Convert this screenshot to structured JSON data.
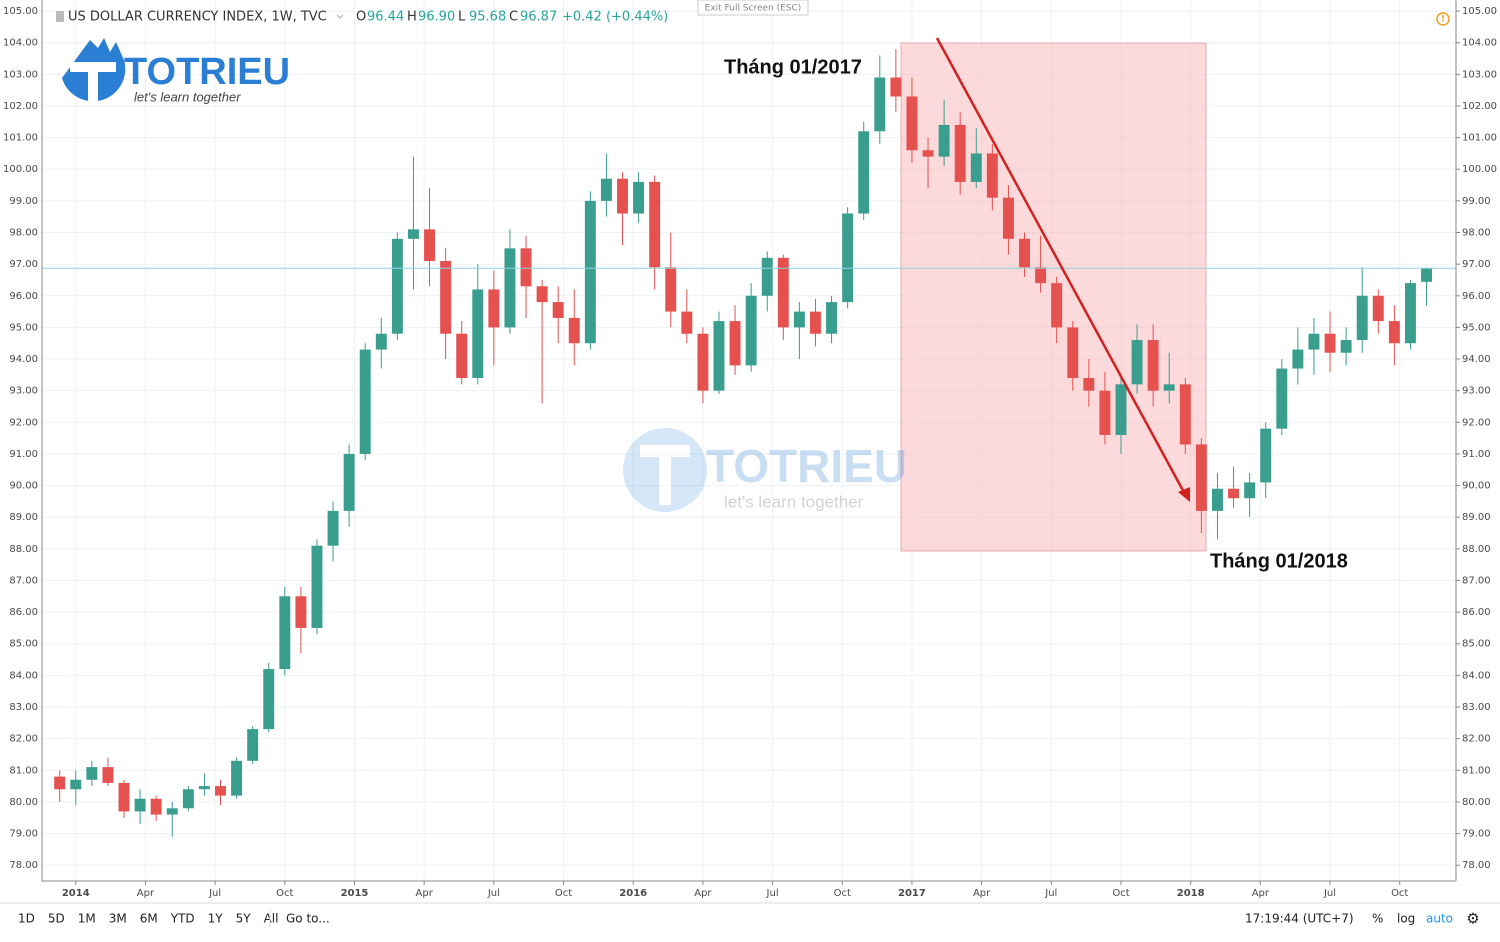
{
  "header": {
    "title": "US DOLLAR CURRENCY INDEX, 1W, TVC",
    "ohlc": [
      {
        "key": "O",
        "value": "96.44"
      },
      {
        "key": "H",
        "value": "96.90"
      },
      {
        "key": "L",
        "value": "95.68"
      },
      {
        "key": "C",
        "value": "96.87"
      }
    ],
    "change": "+0.42 (+0.44%)",
    "exit": "Exit Full Screen (ESC)"
  },
  "logo": {
    "name": "TOTRIEU",
    "tagline": "let's learn together"
  },
  "toolbar": {
    "ranges": [
      "1D",
      "5D",
      "1M",
      "3M",
      "6M",
      "YTD",
      "1Y",
      "5Y",
      "All"
    ],
    "goto": "Go to...",
    "time": "17:19:44 (UTC+7)",
    "percent": "%",
    "log": "log",
    "auto": "auto"
  },
  "chart_data": {
    "type": "candlestick",
    "title": "US DOLLAR CURRENCY INDEX, 1W, TVC",
    "x": [
      -3,
      0,
      3,
      6,
      9,
      12,
      15,
      18,
      21,
      24,
      27,
      30,
      33,
      36,
      39,
      42,
      45,
      48,
      51,
      54,
      57,
      60,
      63,
      66,
      69,
      72,
      75,
      78,
      81,
      84,
      87,
      90,
      93,
      96,
      99,
      102,
      105,
      108,
      111,
      114,
      117,
      120,
      123,
      126,
      129,
      132,
      135,
      138,
      141,
      144,
      147,
      150,
      153,
      156,
      159,
      162,
      165,
      168,
      171,
      174,
      177,
      180,
      183,
      186,
      189,
      192,
      195,
      198,
      201,
      204,
      207,
      210,
      213,
      216,
      219,
      222,
      225,
      228,
      231,
      234,
      237,
      240,
      243,
      246,
      249,
      252
    ],
    "open": [
      80.8,
      80.4,
      80.7,
      81.1,
      80.6,
      79.7,
      80.1,
      79.6,
      79.8,
      80.4,
      80.5,
      80.2,
      81.3,
      82.3,
      84.2,
      86.5,
      85.5,
      88.1,
      89.2,
      91.0,
      94.3,
      94.8,
      97.8,
      98.1,
      97.1,
      94.8,
      93.4,
      96.2,
      95.0,
      97.5,
      96.3,
      95.8,
      95.3,
      94.5,
      99.0,
      99.7,
      98.6,
      99.6,
      96.9,
      95.5,
      94.8,
      93.0,
      95.2,
      93.8,
      96.0,
      97.2,
      95.0,
      95.5,
      94.8,
      95.8,
      98.6,
      101.2,
      102.9,
      102.3,
      100.6,
      100.4,
      101.4,
      99.6,
      100.5,
      99.1,
      97.8,
      96.9,
      96.4,
      95.0,
      93.4,
      93.0,
      91.6,
      93.2,
      94.6,
      93.0,
      93.2,
      91.3,
      89.2,
      89.9,
      89.6,
      90.1,
      91.8,
      93.7,
      94.3,
      94.8,
      94.2,
      94.6,
      96.0,
      95.2,
      94.5,
      96.44
    ],
    "high": [
      81.0,
      81.0,
      81.3,
      81.4,
      80.7,
      80.4,
      80.2,
      80.0,
      80.5,
      80.9,
      80.7,
      81.4,
      82.4,
      84.4,
      86.8,
      86.8,
      88.3,
      89.5,
      91.3,
      94.5,
      95.3,
      98.0,
      100.4,
      99.4,
      97.5,
      95.2,
      97.0,
      96.8,
      98.1,
      97.9,
      96.5,
      96.3,
      96.2,
      99.3,
      100.5,
      99.9,
      99.9,
      99.8,
      98.0,
      96.2,
      95.0,
      95.5,
      95.7,
      96.4,
      97.4,
      97.3,
      95.8,
      95.9,
      96.0,
      98.8,
      101.5,
      103.6,
      103.8,
      102.9,
      101.0,
      102.2,
      101.8,
      101.3,
      100.8,
      99.5,
      98.0,
      97.9,
      96.6,
      95.2,
      94.0,
      93.6,
      93.5,
      95.1,
      95.1,
      94.2,
      93.4,
      91.5,
      90.4,
      90.6,
      90.4,
      92.0,
      94.0,
      95.0,
      95.3,
      95.5,
      95.0,
      96.9,
      96.2,
      95.7,
      96.5,
      96.9
    ],
    "low": [
      80.0,
      79.9,
      80.5,
      80.5,
      79.5,
      79.3,
      79.4,
      78.9,
      79.7,
      80.2,
      79.9,
      80.1,
      81.2,
      82.2,
      84.0,
      84.7,
      85.3,
      87.6,
      88.7,
      90.8,
      93.7,
      94.6,
      96.2,
      96.3,
      94.0,
      93.2,
      93.2,
      93.8,
      94.8,
      95.3,
      92.6,
      94.5,
      93.8,
      94.3,
      98.5,
      97.6,
      98.3,
      96.2,
      95.0,
      94.5,
      92.6,
      92.9,
      93.5,
      93.6,
      95.5,
      94.6,
      94.0,
      94.4,
      94.5,
      95.6,
      98.4,
      100.8,
      101.8,
      100.2,
      99.4,
      100.1,
      99.2,
      99.4,
      98.7,
      97.3,
      96.6,
      96.1,
      94.5,
      93.0,
      92.5,
      91.3,
      91.0,
      92.9,
      92.5,
      92.6,
      91.0,
      88.5,
      88.3,
      89.3,
      89.0,
      89.6,
      91.6,
      93.2,
      93.5,
      93.6,
      93.8,
      94.2,
      94.8,
      93.8,
      94.3,
      95.68
    ],
    "close": [
      80.4,
      80.7,
      81.1,
      80.6,
      79.7,
      80.1,
      79.6,
      79.8,
      80.4,
      80.5,
      80.2,
      81.3,
      82.3,
      84.2,
      86.5,
      85.5,
      88.1,
      89.2,
      91.0,
      94.3,
      94.8,
      97.8,
      98.1,
      97.1,
      94.8,
      93.4,
      96.2,
      95.0,
      97.5,
      96.3,
      95.8,
      95.3,
      94.5,
      99.0,
      99.7,
      98.6,
      99.6,
      96.9,
      95.5,
      94.8,
      93.0,
      95.2,
      93.8,
      96.0,
      97.2,
      95.0,
      95.5,
      94.8,
      95.8,
      98.6,
      101.2,
      102.9,
      102.3,
      100.6,
      100.4,
      101.4,
      99.6,
      100.5,
      99.1,
      97.8,
      96.9,
      96.4,
      95.0,
      93.4,
      93.0,
      91.6,
      93.2,
      94.6,
      93.0,
      93.2,
      91.3,
      89.2,
      89.9,
      89.6,
      90.1,
      91.8,
      93.7,
      94.3,
      94.8,
      94.2,
      94.6,
      96.0,
      95.2,
      94.5,
      96.4,
      96.87
    ],
    "up_color": "#3a9e8e",
    "down_color": "#e5514f",
    "grid": true,
    "xlim": [
      -6.3,
      257.5
    ],
    "xticks": [
      {
        "value": 0,
        "label": "2014"
      },
      {
        "value": 13,
        "label": "Apr"
      },
      {
        "value": 26,
        "label": "Jul"
      },
      {
        "value": 39,
        "label": "Oct"
      },
      {
        "value": 52,
        "label": "2015"
      },
      {
        "value": 65,
        "label": "Apr"
      },
      {
        "value": 78,
        "label": "Jul"
      },
      {
        "value": 91,
        "label": "Oct"
      },
      {
        "value": 104,
        "label": "2016"
      },
      {
        "value": 117,
        "label": "Apr"
      },
      {
        "value": 130,
        "label": "Jul"
      },
      {
        "value": 143,
        "label": "Oct"
      },
      {
        "value": 156,
        "label": "2017"
      },
      {
        "value": 169,
        "label": "Apr"
      },
      {
        "value": 182,
        "label": "Jul"
      },
      {
        "value": 195,
        "label": "Oct"
      },
      {
        "value": 208,
        "label": "2018"
      },
      {
        "value": 221,
        "label": "Apr"
      },
      {
        "value": 234,
        "label": "Jul"
      },
      {
        "value": 247,
        "label": "Oct"
      }
    ],
    "ylim": [
      77.5,
      105.35
    ],
    "yticks": [
      {
        "value": 78,
        "label": "78.00"
      },
      {
        "value": 79,
        "label": "79.00"
      },
      {
        "value": 80,
        "label": "80.00"
      },
      {
        "value": 81,
        "label": "81.00"
      },
      {
        "value": 82,
        "label": "82.00"
      },
      {
        "value": 83,
        "label": "83.00"
      },
      {
        "value": 84,
        "label": "84.00"
      },
      {
        "value": 85,
        "label": "85.00"
      },
      {
        "value": 86,
        "label": "86.00"
      },
      {
        "value": 87,
        "label": "87.00"
      },
      {
        "value": 88,
        "label": "88.00"
      },
      {
        "value": 89,
        "label": "89.00"
      },
      {
        "value": 90,
        "label": "90.00"
      },
      {
        "value": 91,
        "label": "91.00"
      },
      {
        "value": 92,
        "label": "92.00"
      },
      {
        "value": 93,
        "label": "93.00"
      },
      {
        "value": 94,
        "label": "94.00"
      },
      {
        "value": 95,
        "label": "95.00"
      },
      {
        "value": 96,
        "label": "96.00"
      },
      {
        "value": 97,
        "label": "97.00"
      },
      {
        "value": 98,
        "label": "98.00"
      },
      {
        "value": 99,
        "label": "99.00"
      },
      {
        "value": 100,
        "label": "100.00"
      },
      {
        "value": 101,
        "label": "101.00"
      },
      {
        "value": 102,
        "label": "102.00"
      },
      {
        "value": 103,
        "label": "103.00"
      },
      {
        "value": 104,
        "label": "104.00"
      },
      {
        "value": 105,
        "label": "105.00"
      }
    ],
    "annotations": [
      "Tháng 01/2017",
      "Tháng 01/2018"
    ]
  }
}
